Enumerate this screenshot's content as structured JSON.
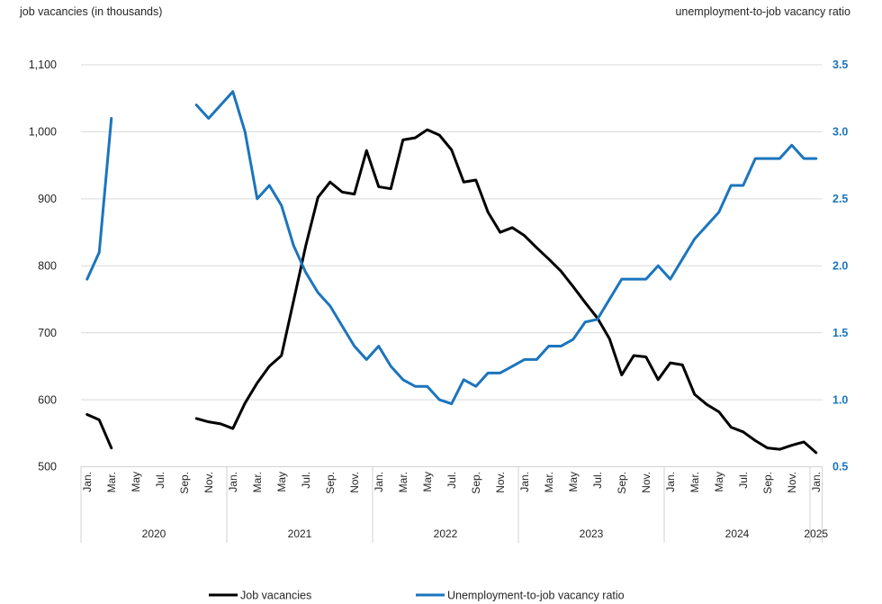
{
  "titles": {
    "left_axis": "job vacancies (in thousands)",
    "right_axis": "unemployment-to-job vacancy ratio"
  },
  "legend": [
    {
      "label": "Job vacancies",
      "color": "#000000"
    },
    {
      "label": "Unemployment-to-job vacancy ratio",
      "color": "#1b75bd"
    }
  ],
  "colors": {
    "job_vacancies_line": "#000000",
    "ratio_line": "#1b75bd",
    "gridline": "#d9d9d9",
    "axis_line": "#d2d2d2",
    "text": "#262626"
  },
  "chart_data": {
    "type": "line",
    "title": "",
    "grid": "horizontal",
    "legend_position": "bottom",
    "x": [
      "2020-01",
      "2020-02",
      "2020-03",
      "2020-04",
      "2020-05",
      "2020-06",
      "2020-07",
      "2020-08",
      "2020-09",
      "2020-10",
      "2020-11",
      "2020-12",
      "2021-01",
      "2021-02",
      "2021-03",
      "2021-04",
      "2021-05",
      "2021-06",
      "2021-07",
      "2021-08",
      "2021-09",
      "2021-10",
      "2021-11",
      "2021-12",
      "2022-01",
      "2022-02",
      "2022-03",
      "2022-04",
      "2022-05",
      "2022-06",
      "2022-07",
      "2022-08",
      "2022-09",
      "2022-10",
      "2022-11",
      "2022-12",
      "2023-01",
      "2023-02",
      "2023-03",
      "2023-04",
      "2023-05",
      "2023-06",
      "2023-07",
      "2023-08",
      "2023-09",
      "2023-10",
      "2023-11",
      "2023-12",
      "2024-01",
      "2024-02",
      "2024-03",
      "2024-04",
      "2024-05",
      "2024-06",
      "2024-07",
      "2024-08",
      "2024-09",
      "2024-10",
      "2024-11",
      "2024-12",
      "2025-01"
    ],
    "series": [
      {
        "name": "Job vacancies",
        "axis": "left",
        "color": "#000000",
        "values": [
          578,
          570,
          528,
          null,
          null,
          null,
          null,
          null,
          null,
          572,
          567,
          564,
          557,
          595,
          625,
          650,
          666,
          748,
          830,
          902,
          925,
          910,
          907,
          972,
          918,
          915,
          988,
          991,
          1003,
          995,
          973,
          925,
          928,
          880,
          850,
          857,
          845,
          827,
          810,
          792,
          769,
          745,
          722,
          691,
          637,
          666,
          664,
          630,
          655,
          652,
          608,
          593,
          582,
          559,
          552,
          539,
          528,
          526,
          532,
          537,
          521
        ]
      },
      {
        "name": "Unemployment-to-job vacancy ratio",
        "axis": "right",
        "color": "#1b75bd",
        "values": [
          1.9,
          2.1,
          3.1,
          null,
          null,
          null,
          null,
          null,
          null,
          3.2,
          3.1,
          3.2,
          3.3,
          3.0,
          2.5,
          2.6,
          2.45,
          2.15,
          1.95,
          1.8,
          1.7,
          1.55,
          1.4,
          1.3,
          1.4,
          1.25,
          1.15,
          1.1,
          1.1,
          1.0,
          0.97,
          1.15,
          1.1,
          1.2,
          1.2,
          1.25,
          1.3,
          1.3,
          1.4,
          1.4,
          1.45,
          1.58,
          1.6,
          1.75,
          1.9,
          1.9,
          1.9,
          2.0,
          1.9,
          2.05,
          2.2,
          2.3,
          2.4,
          2.6,
          2.6,
          2.8,
          2.8,
          2.8,
          2.9,
          2.8,
          2.8
        ]
      }
    ],
    "left_axis": {
      "min": 500,
      "max": 1100,
      "step": 100,
      "tick_labels": [
        "1,100",
        "1,000",
        "900",
        "800",
        "700",
        "600",
        "500"
      ]
    },
    "right_axis": {
      "min": 0.5,
      "max": 3.5,
      "step": 0.5,
      "tick_labels": [
        "3.5",
        "3.0",
        "2.5",
        "2.0",
        "1.5",
        "1.0",
        "0.5"
      ]
    },
    "x_axis": {
      "month_tick_labels": [
        "Jan.",
        "Mar.",
        "May",
        "Jul.",
        "Sep.",
        "Nov."
      ],
      "years": [
        "2020",
        "2021",
        "2022",
        "2023",
        "2024",
        "2025"
      ]
    }
  }
}
